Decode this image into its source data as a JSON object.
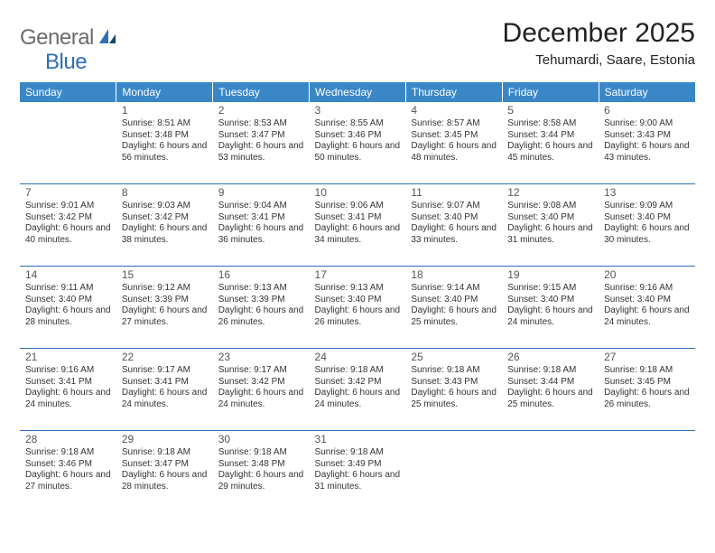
{
  "logo": {
    "text1": "General",
    "text2": "Blue"
  },
  "header": {
    "title": "December 2025",
    "location": "Tehumardi, Saare, Estonia"
  },
  "colors": {
    "header_bg": "#3a87c8",
    "header_text": "#ffffff",
    "border": "#2f6fb3",
    "text": "#333333",
    "logo_gray": "#6b6b6b",
    "logo_blue": "#2f6fb3",
    "bg": "#ffffff"
  },
  "weekdays": [
    "Sunday",
    "Monday",
    "Tuesday",
    "Wednesday",
    "Thursday",
    "Friday",
    "Saturday"
  ],
  "weeks": [
    [
      null,
      {
        "n": "1",
        "sr": "8:51 AM",
        "ss": "3:48 PM",
        "dl": "6 hours and 56 minutes."
      },
      {
        "n": "2",
        "sr": "8:53 AM",
        "ss": "3:47 PM",
        "dl": "6 hours and 53 minutes."
      },
      {
        "n": "3",
        "sr": "8:55 AM",
        "ss": "3:46 PM",
        "dl": "6 hours and 50 minutes."
      },
      {
        "n": "4",
        "sr": "8:57 AM",
        "ss": "3:45 PM",
        "dl": "6 hours and 48 minutes."
      },
      {
        "n": "5",
        "sr": "8:58 AM",
        "ss": "3:44 PM",
        "dl": "6 hours and 45 minutes."
      },
      {
        "n": "6",
        "sr": "9:00 AM",
        "ss": "3:43 PM",
        "dl": "6 hours and 43 minutes."
      }
    ],
    [
      {
        "n": "7",
        "sr": "9:01 AM",
        "ss": "3:42 PM",
        "dl": "6 hours and 40 minutes."
      },
      {
        "n": "8",
        "sr": "9:03 AM",
        "ss": "3:42 PM",
        "dl": "6 hours and 38 minutes."
      },
      {
        "n": "9",
        "sr": "9:04 AM",
        "ss": "3:41 PM",
        "dl": "6 hours and 36 minutes."
      },
      {
        "n": "10",
        "sr": "9:06 AM",
        "ss": "3:41 PM",
        "dl": "6 hours and 34 minutes."
      },
      {
        "n": "11",
        "sr": "9:07 AM",
        "ss": "3:40 PM",
        "dl": "6 hours and 33 minutes."
      },
      {
        "n": "12",
        "sr": "9:08 AM",
        "ss": "3:40 PM",
        "dl": "6 hours and 31 minutes."
      },
      {
        "n": "13",
        "sr": "9:09 AM",
        "ss": "3:40 PM",
        "dl": "6 hours and 30 minutes."
      }
    ],
    [
      {
        "n": "14",
        "sr": "9:11 AM",
        "ss": "3:40 PM",
        "dl": "6 hours and 28 minutes."
      },
      {
        "n": "15",
        "sr": "9:12 AM",
        "ss": "3:39 PM",
        "dl": "6 hours and 27 minutes."
      },
      {
        "n": "16",
        "sr": "9:13 AM",
        "ss": "3:39 PM",
        "dl": "6 hours and 26 minutes."
      },
      {
        "n": "17",
        "sr": "9:13 AM",
        "ss": "3:40 PM",
        "dl": "6 hours and 26 minutes."
      },
      {
        "n": "18",
        "sr": "9:14 AM",
        "ss": "3:40 PM",
        "dl": "6 hours and 25 minutes."
      },
      {
        "n": "19",
        "sr": "9:15 AM",
        "ss": "3:40 PM",
        "dl": "6 hours and 24 minutes."
      },
      {
        "n": "20",
        "sr": "9:16 AM",
        "ss": "3:40 PM",
        "dl": "6 hours and 24 minutes."
      }
    ],
    [
      {
        "n": "21",
        "sr": "9:16 AM",
        "ss": "3:41 PM",
        "dl": "6 hours and 24 minutes."
      },
      {
        "n": "22",
        "sr": "9:17 AM",
        "ss": "3:41 PM",
        "dl": "6 hours and 24 minutes."
      },
      {
        "n": "23",
        "sr": "9:17 AM",
        "ss": "3:42 PM",
        "dl": "6 hours and 24 minutes."
      },
      {
        "n": "24",
        "sr": "9:18 AM",
        "ss": "3:42 PM",
        "dl": "6 hours and 24 minutes."
      },
      {
        "n": "25",
        "sr": "9:18 AM",
        "ss": "3:43 PM",
        "dl": "6 hours and 25 minutes."
      },
      {
        "n": "26",
        "sr": "9:18 AM",
        "ss": "3:44 PM",
        "dl": "6 hours and 25 minutes."
      },
      {
        "n": "27",
        "sr": "9:18 AM",
        "ss": "3:45 PM",
        "dl": "6 hours and 26 minutes."
      }
    ],
    [
      {
        "n": "28",
        "sr": "9:18 AM",
        "ss": "3:46 PM",
        "dl": "6 hours and 27 minutes."
      },
      {
        "n": "29",
        "sr": "9:18 AM",
        "ss": "3:47 PM",
        "dl": "6 hours and 28 minutes."
      },
      {
        "n": "30",
        "sr": "9:18 AM",
        "ss": "3:48 PM",
        "dl": "6 hours and 29 minutes."
      },
      {
        "n": "31",
        "sr": "9:18 AM",
        "ss": "3:49 PM",
        "dl": "6 hours and 31 minutes."
      },
      null,
      null,
      null
    ]
  ],
  "labels": {
    "sunrise": "Sunrise:",
    "sunset": "Sunset:",
    "daylight": "Daylight:"
  }
}
